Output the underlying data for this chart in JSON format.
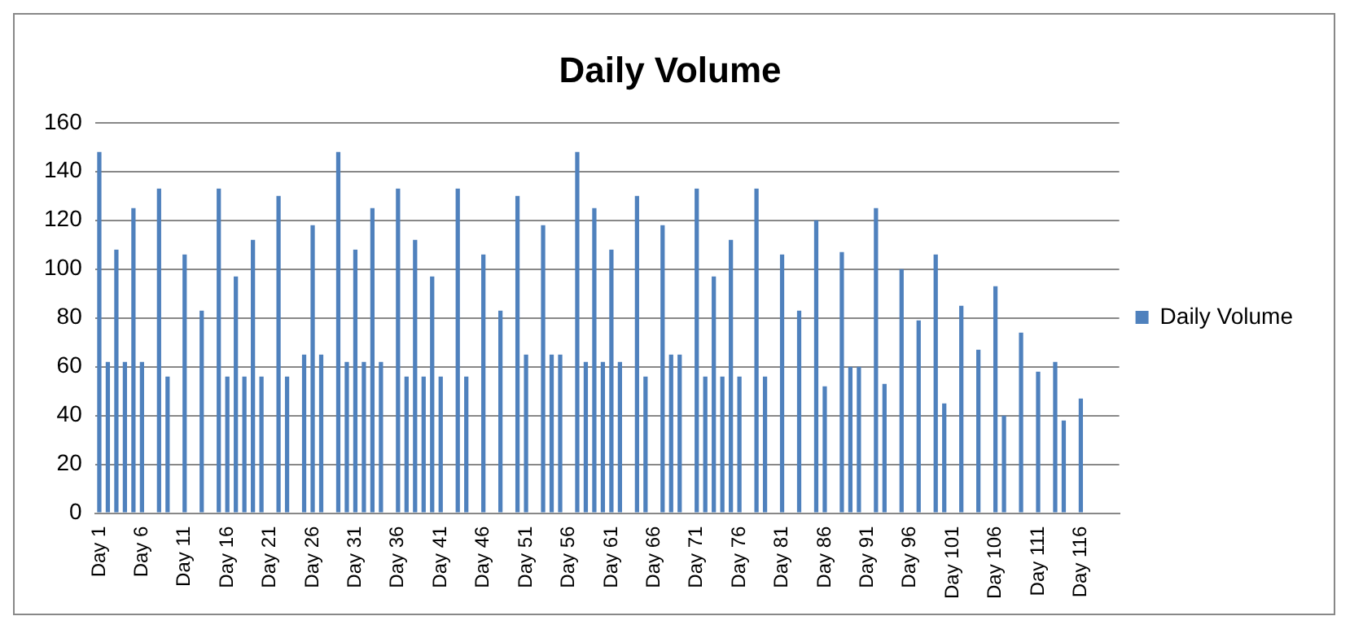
{
  "chart_data": {
    "type": "bar",
    "title": "Daily Volume",
    "categories": [
      "Day 1",
      null,
      null,
      null,
      null,
      "Day 6",
      null,
      null,
      null,
      null,
      "Day 11",
      null,
      null,
      null,
      null,
      "Day 16",
      null,
      null,
      null,
      null,
      "Day 21",
      null,
      null,
      null,
      null,
      "Day 26",
      null,
      null,
      null,
      null,
      "Day 31",
      null,
      null,
      null,
      null,
      "Day 36",
      null,
      null,
      null,
      null,
      "Day 41",
      null,
      null,
      null,
      null,
      "Day 46",
      null,
      null,
      null,
      null,
      "Day 51",
      null,
      null,
      null,
      null,
      "Day 56",
      null,
      null,
      null,
      null,
      "Day 61",
      null,
      null,
      null,
      null,
      "Day 66",
      null,
      null,
      null,
      null,
      "Day 71",
      null,
      null,
      null,
      null,
      "Day 76",
      null,
      null,
      null,
      null,
      "Day 81",
      null,
      null,
      null,
      null,
      "Day 86",
      null,
      null,
      null,
      null,
      "Day 91",
      null,
      null,
      null,
      null,
      "Day 96",
      null,
      null,
      null,
      null,
      "Day 101",
      null,
      null,
      null,
      null,
      "Day 106",
      null,
      null,
      null,
      null,
      "Day 111",
      null,
      null,
      null,
      null,
      "Day 116",
      null,
      null,
      null,
      null
    ],
    "series": [
      {
        "name": "Daily Volume",
        "color": "#4f81bd",
        "values": [
          148,
          62,
          108,
          62,
          125,
          62,
          0,
          133,
          56,
          0,
          106,
          0,
          83,
          0,
          133,
          56,
          97,
          56,
          112,
          56,
          0,
          130,
          56,
          0,
          65,
          118,
          65,
          0,
          148,
          62,
          108,
          62,
          125,
          62,
          0,
          133,
          56,
          112,
          56,
          97,
          56,
          0,
          133,
          56,
          0,
          106,
          0,
          83,
          0,
          130,
          65,
          0,
          118,
          65,
          65,
          0,
          148,
          62,
          125,
          62,
          108,
          62,
          0,
          130,
          56,
          0,
          118,
          65,
          65,
          0,
          133,
          56,
          97,
          56,
          112,
          56,
          0,
          133,
          56,
          0,
          106,
          0,
          83,
          0,
          120,
          52,
          0,
          107,
          60,
          60,
          0,
          125,
          53,
          0,
          100,
          0,
          79,
          0,
          106,
          45,
          0,
          85,
          0,
          67,
          0,
          93,
          40,
          0,
          74,
          0,
          58,
          0,
          62,
          38,
          0,
          47,
          0,
          0,
          0,
          0
        ]
      }
    ],
    "ylim": [
      0,
      160
    ],
    "yticks": [
      0,
      20,
      40,
      60,
      80,
      100,
      120,
      140,
      160
    ],
    "grid": "y",
    "legend": "right"
  }
}
